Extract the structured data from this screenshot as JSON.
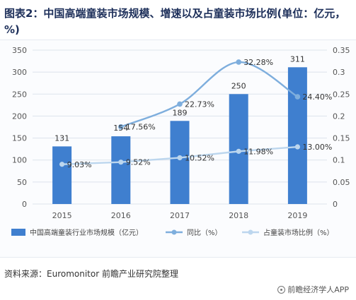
{
  "header": {
    "title": "图表2：中国高端童装市场规模、增速以及占童装市场比例(单位：亿元，%)"
  },
  "footer": {
    "source": "资料来源：Euromonitor 前瞻产业研究院整理",
    "watermark": "前瞻经济学人APP"
  },
  "colors": {
    "bar": "#3f7fcf",
    "growth_line": "#7eaedd",
    "share_line": "#bcd6ee",
    "grid": "#dde3ec",
    "axis_text": "#555555"
  },
  "chart_data": {
    "type": "bar",
    "title": "",
    "categories": [
      "2015",
      "2016",
      "2017",
      "2018",
      "2019"
    ],
    "y_left": {
      "min": 0,
      "max": 350,
      "ticks": [
        "0",
        "50",
        "100",
        "150",
        "200",
        "250",
        "300",
        "350"
      ]
    },
    "y_right": {
      "min": 0,
      "max": 0.35,
      "ticks": [
        "0",
        "0.05",
        "0.1",
        "0.15",
        "0.2",
        "0.25",
        "0.3",
        "0.35"
      ]
    },
    "grid": true,
    "legend_position": "bottom",
    "series": [
      {
        "name": "中国高端童装行业市场规模（亿元）",
        "kind": "bar",
        "axis": "left",
        "values": [
          131,
          154,
          189,
          250,
          311
        ],
        "labels": [
          "131",
          "154",
          "189",
          "250",
          "311"
        ]
      },
      {
        "name": "同比（%）",
        "kind": "line",
        "axis": "right",
        "smooth": true,
        "x": [
          "2016",
          "2017",
          "2018",
          "2019"
        ],
        "values": [
          0.1756,
          0.2273,
          0.3228,
          0.244
        ],
        "labels": [
          "17.56%",
          "22.73%",
          "32.28%",
          "24.40%"
        ]
      },
      {
        "name": "占童装市场比例（%）",
        "kind": "line",
        "axis": "right",
        "smooth": false,
        "x": [
          "2015",
          "2016",
          "2017",
          "2018",
          "2019"
        ],
        "values": [
          0.0903,
          0.0952,
          0.1052,
          0.1198,
          0.13
        ],
        "labels": [
          "9.03%",
          "9.52%",
          "10.52%",
          "11.98%",
          "13.00%"
        ]
      }
    ]
  }
}
